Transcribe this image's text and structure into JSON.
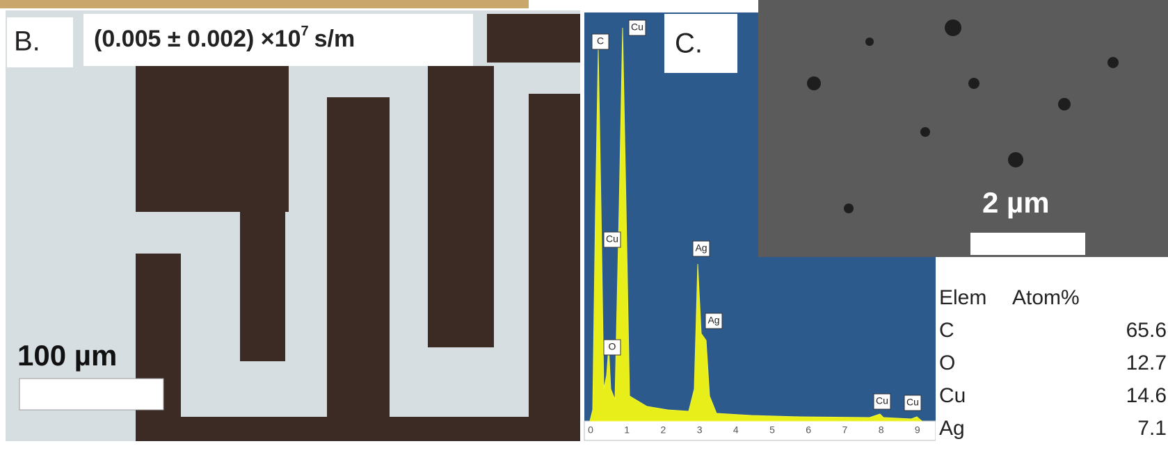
{
  "panel_b": {
    "label": "B.",
    "annotation": {
      "text": "(0.005 ± 0.002) ×10",
      "exponent": "7",
      "unit": "s/m"
    },
    "scale_bar": "100 µm"
  },
  "panel_c": {
    "label": "C.",
    "peak_labels": [
      "C",
      "Cu",
      "Cu",
      "O",
      "Ag",
      "Ag",
      "Cu",
      "Cu"
    ],
    "x_ticks": [
      0,
      1,
      2,
      3,
      4,
      5,
      6,
      7,
      8,
      9
    ],
    "sem_scale_bar": "2 µm",
    "table": {
      "header": [
        "Elem",
        "Atom%"
      ],
      "rows": [
        [
          "C",
          65.6
        ],
        [
          "O",
          12.7
        ],
        [
          "Cu",
          14.6
        ],
        [
          "Ag",
          7.1
        ]
      ]
    }
  }
}
